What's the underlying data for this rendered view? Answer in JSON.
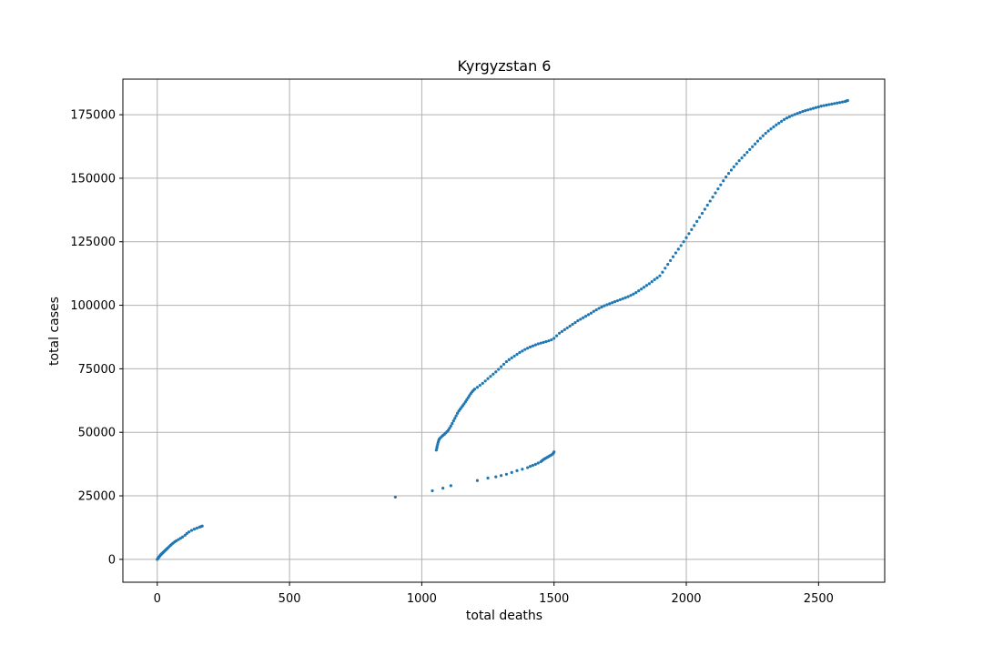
{
  "chart_data": {
    "type": "scatter",
    "title": "Kyrgyzstan 6",
    "xlabel": "total deaths",
    "ylabel": "total cases",
    "xlim": [
      -130,
      2750
    ],
    "ylim": [
      -9000,
      189000
    ],
    "xticks": [
      0,
      500,
      1000,
      1500,
      2000,
      2500
    ],
    "yticks": [
      0,
      25000,
      50000,
      75000,
      100000,
      125000,
      150000,
      175000
    ],
    "xtick_labels": [
      "0",
      "500",
      "1000",
      "1500",
      "2000",
      "2500"
    ],
    "ytick_labels": [
      "0",
      "25000",
      "50000",
      "75000",
      "100000",
      "125000",
      "150000",
      "175000"
    ],
    "grid": true,
    "marker_color": "#1f77b4",
    "series": [
      {
        "points": [
          [
            0,
            0
          ],
          [
            2,
            300
          ],
          [
            4,
            600
          ],
          [
            6,
            900
          ],
          [
            8,
            1100
          ],
          [
            10,
            1400
          ],
          [
            12,
            1700
          ],
          [
            14,
            1900
          ],
          [
            16,
            2100
          ],
          [
            18,
            2300
          ],
          [
            20,
            2500
          ],
          [
            22,
            2700
          ],
          [
            25,
            3000
          ],
          [
            28,
            3300
          ],
          [
            31,
            3600
          ],
          [
            34,
            3900
          ],
          [
            37,
            4200
          ],
          [
            40,
            4500
          ],
          [
            45,
            5000
          ],
          [
            50,
            5500
          ],
          [
            55,
            6000
          ],
          [
            60,
            6400
          ],
          [
            66,
            6900
          ],
          [
            72,
            7300
          ],
          [
            80,
            7800
          ],
          [
            88,
            8300
          ],
          [
            96,
            8800
          ],
          [
            105,
            9500
          ],
          [
            112,
            10200
          ],
          [
            120,
            10800
          ],
          [
            130,
            11400
          ],
          [
            140,
            11900
          ],
          [
            150,
            12300
          ],
          [
            160,
            12700
          ],
          [
            165,
            12900
          ],
          [
            170,
            13100
          ],
          [
            900,
            24500
          ],
          [
            1040,
            27000
          ],
          [
            1080,
            28000
          ],
          [
            1110,
            29000
          ],
          [
            1210,
            31000
          ],
          [
            1250,
            32000
          ],
          [
            1280,
            32500
          ],
          [
            1300,
            33000
          ],
          [
            1320,
            33500
          ],
          [
            1340,
            34200
          ],
          [
            1360,
            34900
          ],
          [
            1380,
            35500
          ],
          [
            1400,
            36100
          ],
          [
            1410,
            36600
          ],
          [
            1420,
            37000
          ],
          [
            1430,
            37400
          ],
          [
            1440,
            37900
          ],
          [
            1450,
            38400
          ],
          [
            1455,
            38900
          ],
          [
            1460,
            39300
          ],
          [
            1465,
            39600
          ],
          [
            1470,
            39900
          ],
          [
            1475,
            40200
          ],
          [
            1480,
            40500
          ],
          [
            1485,
            40800
          ],
          [
            1490,
            41100
          ],
          [
            1495,
            41500
          ],
          [
            1498,
            41900
          ],
          [
            1500,
            42300
          ],
          [
            1055,
            43000
          ],
          [
            1057,
            43800
          ],
          [
            1058,
            44500
          ],
          [
            1060,
            45300
          ],
          [
            1062,
            46100
          ],
          [
            1064,
            46800
          ],
          [
            1066,
            47300
          ],
          [
            1070,
            47800
          ],
          [
            1075,
            48300
          ],
          [
            1080,
            48800
          ],
          [
            1085,
            49200
          ],
          [
            1090,
            49700
          ],
          [
            1095,
            50200
          ],
          [
            1100,
            50800
          ],
          [
            1105,
            51600
          ],
          [
            1110,
            52500
          ],
          [
            1115,
            53500
          ],
          [
            1120,
            54500
          ],
          [
            1125,
            55500
          ],
          [
            1130,
            56500
          ],
          [
            1135,
            57500
          ],
          [
            1140,
            58400
          ],
          [
            1145,
            59100
          ],
          [
            1150,
            59800
          ],
          [
            1155,
            60500
          ],
          [
            1160,
            61200
          ],
          [
            1165,
            62000
          ],
          [
            1170,
            62800
          ],
          [
            1175,
            63600
          ],
          [
            1180,
            64400
          ],
          [
            1185,
            65200
          ],
          [
            1190,
            65900
          ],
          [
            1195,
            66500
          ],
          [
            1200,
            67000
          ],
          [
            1210,
            67700
          ],
          [
            1220,
            68500
          ],
          [
            1230,
            69300
          ],
          [
            1240,
            70200
          ],
          [
            1250,
            71100
          ],
          [
            1260,
            72000
          ],
          [
            1270,
            72900
          ],
          [
            1280,
            73800
          ],
          [
            1290,
            74800
          ],
          [
            1300,
            75800
          ],
          [
            1310,
            76800
          ],
          [
            1320,
            77800
          ],
          [
            1330,
            78600
          ],
          [
            1340,
            79300
          ],
          [
            1350,
            80000
          ],
          [
            1360,
            80700
          ],
          [
            1370,
            81400
          ],
          [
            1380,
            82000
          ],
          [
            1390,
            82600
          ],
          [
            1400,
            83100
          ],
          [
            1410,
            83600
          ],
          [
            1420,
            84000
          ],
          [
            1430,
            84400
          ],
          [
            1440,
            84800
          ],
          [
            1450,
            85100
          ],
          [
            1460,
            85400
          ],
          [
            1470,
            85700
          ],
          [
            1480,
            86000
          ],
          [
            1490,
            86400
          ],
          [
            1500,
            87000
          ],
          [
            1510,
            88000
          ],
          [
            1520,
            89000
          ],
          [
            1530,
            89700
          ],
          [
            1540,
            90400
          ],
          [
            1550,
            91100
          ],
          [
            1560,
            91800
          ],
          [
            1570,
            92500
          ],
          [
            1580,
            93200
          ],
          [
            1590,
            93900
          ],
          [
            1600,
            94500
          ],
          [
            1610,
            95100
          ],
          [
            1620,
            95700
          ],
          [
            1630,
            96300
          ],
          [
            1640,
            96900
          ],
          [
            1650,
            97600
          ],
          [
            1660,
            98200
          ],
          [
            1670,
            98800
          ],
          [
            1680,
            99300
          ],
          [
            1690,
            99800
          ],
          [
            1700,
            100200
          ],
          [
            1710,
            100600
          ],
          [
            1720,
            101000
          ],
          [
            1730,
            101400
          ],
          [
            1740,
            101800
          ],
          [
            1750,
            102200
          ],
          [
            1760,
            102600
          ],
          [
            1770,
            103000
          ],
          [
            1780,
            103400
          ],
          [
            1790,
            103900
          ],
          [
            1800,
            104400
          ],
          [
            1810,
            105000
          ],
          [
            1820,
            105700
          ],
          [
            1830,
            106400
          ],
          [
            1840,
            107100
          ],
          [
            1850,
            107800
          ],
          [
            1860,
            108500
          ],
          [
            1870,
            109300
          ],
          [
            1880,
            110100
          ],
          [
            1890,
            110800
          ],
          [
            1900,
            111600
          ],
          [
            1910,
            113000
          ],
          [
            1920,
            114600
          ],
          [
            1930,
            116100
          ],
          [
            1940,
            117600
          ],
          [
            1950,
            119100
          ],
          [
            1960,
            120600
          ],
          [
            1970,
            122100
          ],
          [
            1980,
            123500
          ],
          [
            1990,
            125000
          ],
          [
            2000,
            126600
          ],
          [
            2010,
            128200
          ],
          [
            2020,
            129800
          ],
          [
            2030,
            131400
          ],
          [
            2040,
            133000
          ],
          [
            2050,
            134600
          ],
          [
            2060,
            136200
          ],
          [
            2070,
            137800
          ],
          [
            2080,
            139400
          ],
          [
            2090,
            141000
          ],
          [
            2100,
            142600
          ],
          [
            2110,
            144200
          ],
          [
            2120,
            145800
          ],
          [
            2130,
            147400
          ],
          [
            2140,
            149000
          ],
          [
            2150,
            150500
          ],
          [
            2160,
            151900
          ],
          [
            2170,
            153200
          ],
          [
            2180,
            154500
          ],
          [
            2190,
            155700
          ],
          [
            2200,
            156900
          ],
          [
            2210,
            158000
          ],
          [
            2220,
            159100
          ],
          [
            2230,
            160200
          ],
          [
            2240,
            161300
          ],
          [
            2250,
            162400
          ],
          [
            2260,
            163500
          ],
          [
            2270,
            164600
          ],
          [
            2280,
            165700
          ],
          [
            2290,
            166700
          ],
          [
            2300,
            167700
          ],
          [
            2310,
            168600
          ],
          [
            2320,
            169400
          ],
          [
            2330,
            170200
          ],
          [
            2340,
            171000
          ],
          [
            2350,
            171700
          ],
          [
            2360,
            172400
          ],
          [
            2370,
            173100
          ],
          [
            2380,
            173700
          ],
          [
            2390,
            174200
          ],
          [
            2400,
            174700
          ],
          [
            2410,
            175100
          ],
          [
            2420,
            175500
          ],
          [
            2430,
            175900
          ],
          [
            2440,
            176300
          ],
          [
            2450,
            176600
          ],
          [
            2460,
            176900
          ],
          [
            2470,
            177200
          ],
          [
            2480,
            177500
          ],
          [
            2490,
            177800
          ],
          [
            2500,
            178100
          ],
          [
            2510,
            178400
          ],
          [
            2520,
            178600
          ],
          [
            2530,
            178800
          ],
          [
            2540,
            179000
          ],
          [
            2550,
            179200
          ],
          [
            2560,
            179400
          ],
          [
            2570,
            179600
          ],
          [
            2580,
            179800
          ],
          [
            2590,
            180000
          ],
          [
            2600,
            180200
          ],
          [
            2605,
            180400
          ],
          [
            2610,
            180600
          ]
        ]
      }
    ]
  }
}
